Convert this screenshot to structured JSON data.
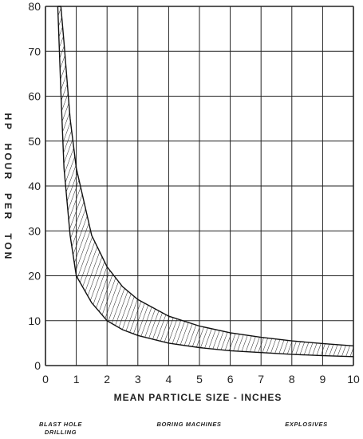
{
  "chart_data": {
    "type": "area",
    "ylabel": "HP HOUR PER TON",
    "xlabel": "MEAN PARTICLE SIZE - INCHES",
    "xlim": [
      0,
      10
    ],
    "ylim": [
      0,
      80
    ],
    "x_ticks": [
      "0",
      "1",
      "2",
      "3",
      "4",
      "5",
      "6",
      "7",
      "8",
      "9",
      "10"
    ],
    "y_ticks": [
      "0",
      "10",
      "20",
      "30",
      "40",
      "50",
      "60",
      "70",
      "80"
    ],
    "grid": true,
    "fill": "diagonal hatch",
    "band": {
      "x": [
        0.4,
        0.5,
        0.6,
        0.8,
        1,
        1.5,
        2,
        2.5,
        3,
        4,
        5,
        6,
        7,
        8,
        9,
        10
      ],
      "upper": [
        80,
        80,
        72,
        55,
        44,
        29,
        22,
        17.6,
        14.7,
        11,
        8.8,
        7.3,
        6.3,
        5.5,
        4.9,
        4.4
      ],
      "lower": [
        80,
        61,
        44,
        29,
        20,
        14,
        10,
        8,
        6.7,
        5,
        4,
        3.3,
        2.9,
        2.5,
        2.2,
        2
      ]
    },
    "footer_labels": [
      {
        "lines": [
          "BLAST HOLE",
          "DRILLING"
        ]
      },
      {
        "lines": [
          "BORING MACHINES"
        ]
      },
      {
        "lines": [
          "EXPLOSIVES"
        ]
      }
    ]
  }
}
